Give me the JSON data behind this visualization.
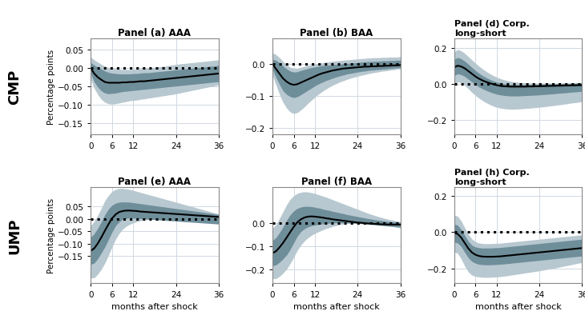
{
  "x": [
    0,
    1,
    2,
    3,
    4,
    5,
    6,
    7,
    8,
    9,
    10,
    11,
    12,
    13,
    14,
    15,
    16,
    17,
    18,
    19,
    20,
    21,
    22,
    23,
    24,
    25,
    26,
    27,
    28,
    29,
    30,
    31,
    32,
    33,
    34,
    35,
    36
  ],
  "panels": {
    "cmp_aaa": {
      "title": "Panel (a) AAA",
      "median": [
        0.0,
        -0.015,
        -0.025,
        -0.032,
        -0.038,
        -0.04,
        -0.04,
        -0.04,
        -0.04,
        -0.039,
        -0.039,
        -0.038,
        -0.038,
        -0.037,
        -0.036,
        -0.036,
        -0.035,
        -0.034,
        -0.033,
        -0.032,
        -0.031,
        -0.03,
        -0.029,
        -0.028,
        -0.027,
        -0.026,
        -0.025,
        -0.024,
        -0.023,
        -0.022,
        -0.021,
        -0.02,
        -0.019,
        -0.018,
        -0.017,
        -0.016,
        -0.015
      ],
      "band68_upper": [
        0.015,
        0.008,
        0.002,
        -0.003,
        -0.008,
        -0.012,
        -0.014,
        -0.015,
        -0.016,
        -0.016,
        -0.016,
        -0.016,
        -0.015,
        -0.015,
        -0.014,
        -0.013,
        -0.013,
        -0.012,
        -0.011,
        -0.01,
        -0.009,
        -0.008,
        -0.007,
        -0.006,
        -0.005,
        -0.004,
        -0.003,
        -0.002,
        -0.001,
        0.0,
        0.001,
        0.002,
        0.003,
        0.004,
        0.005,
        0.006,
        0.007
      ],
      "band68_lower": [
        -0.015,
        -0.038,
        -0.052,
        -0.062,
        -0.068,
        -0.07,
        -0.069,
        -0.068,
        -0.066,
        -0.064,
        -0.063,
        -0.062,
        -0.061,
        -0.06,
        -0.059,
        -0.058,
        -0.057,
        -0.056,
        -0.055,
        -0.054,
        -0.053,
        -0.052,
        -0.051,
        -0.05,
        -0.049,
        -0.048,
        -0.047,
        -0.046,
        -0.045,
        -0.044,
        -0.043,
        -0.042,
        -0.041,
        -0.04,
        -0.039,
        -0.038,
        -0.037
      ],
      "band90_upper": [
        0.03,
        0.022,
        0.016,
        0.01,
        0.005,
        0.001,
        -0.001,
        -0.002,
        -0.003,
        -0.004,
        -0.004,
        -0.004,
        -0.003,
        -0.003,
        -0.002,
        -0.001,
        0.0,
        0.001,
        0.002,
        0.003,
        0.004,
        0.005,
        0.007,
        0.008,
        0.01,
        0.011,
        0.012,
        0.013,
        0.014,
        0.015,
        0.016,
        0.017,
        0.018,
        0.019,
        0.02,
        0.021,
        0.022
      ],
      "band90_lower": [
        -0.03,
        -0.055,
        -0.072,
        -0.085,
        -0.093,
        -0.097,
        -0.098,
        -0.097,
        -0.095,
        -0.093,
        -0.091,
        -0.089,
        -0.088,
        -0.087,
        -0.085,
        -0.084,
        -0.082,
        -0.081,
        -0.079,
        -0.078,
        -0.076,
        -0.075,
        -0.073,
        -0.072,
        -0.07,
        -0.068,
        -0.066,
        -0.064,
        -0.062,
        -0.06,
        -0.058,
        -0.056,
        -0.054,
        -0.052,
        -0.05,
        -0.048,
        -0.046
      ],
      "ylim": [
        -0.18,
        0.08
      ],
      "yticks": [
        0.05,
        0,
        -0.05,
        -0.1,
        -0.15
      ]
    },
    "cmp_baa": {
      "title": "Panel (b) BAA",
      "median": [
        0.0,
        -0.015,
        -0.03,
        -0.045,
        -0.055,
        -0.062,
        -0.065,
        -0.063,
        -0.058,
        -0.053,
        -0.048,
        -0.043,
        -0.038,
        -0.033,
        -0.029,
        -0.026,
        -0.023,
        -0.02,
        -0.018,
        -0.016,
        -0.014,
        -0.013,
        -0.012,
        -0.011,
        -0.01,
        -0.009,
        -0.008,
        -0.008,
        -0.007,
        -0.007,
        -0.006,
        -0.006,
        -0.005,
        -0.005,
        -0.004,
        -0.004,
        -0.003
      ],
      "band68_upper": [
        0.015,
        0.012,
        0.004,
        -0.006,
        -0.015,
        -0.022,
        -0.025,
        -0.024,
        -0.02,
        -0.017,
        -0.014,
        -0.011,
        -0.009,
        -0.007,
        -0.005,
        -0.004,
        -0.003,
        -0.002,
        -0.001,
        0.0,
        0.001,
        0.002,
        0.003,
        0.004,
        0.005,
        0.006,
        0.007,
        0.008,
        0.008,
        0.009,
        0.009,
        0.01,
        0.01,
        0.011,
        0.011,
        0.012,
        0.012
      ],
      "band68_lower": [
        -0.015,
        -0.042,
        -0.064,
        -0.084,
        -0.095,
        -0.102,
        -0.105,
        -0.102,
        -0.096,
        -0.089,
        -0.082,
        -0.075,
        -0.068,
        -0.062,
        -0.057,
        -0.052,
        -0.048,
        -0.044,
        -0.04,
        -0.037,
        -0.034,
        -0.031,
        -0.029,
        -0.027,
        -0.025,
        -0.023,
        -0.022,
        -0.02,
        -0.019,
        -0.018,
        -0.017,
        -0.016,
        -0.015,
        -0.014,
        -0.013,
        -0.012,
        -0.012
      ],
      "band90_upper": [
        0.035,
        0.03,
        0.02,
        0.008,
        -0.002,
        -0.01,
        -0.013,
        -0.013,
        -0.01,
        -0.007,
        -0.004,
        -0.002,
        0.0,
        0.002,
        0.004,
        0.006,
        0.007,
        0.009,
        0.01,
        0.011,
        0.012,
        0.013,
        0.014,
        0.015,
        0.016,
        0.017,
        0.018,
        0.019,
        0.019,
        0.02,
        0.02,
        0.021,
        0.021,
        0.022,
        0.022,
        0.022,
        0.023
      ],
      "band90_lower": [
        -0.035,
        -0.065,
        -0.095,
        -0.12,
        -0.138,
        -0.15,
        -0.155,
        -0.152,
        -0.144,
        -0.134,
        -0.123,
        -0.113,
        -0.103,
        -0.094,
        -0.086,
        -0.079,
        -0.072,
        -0.066,
        -0.061,
        -0.056,
        -0.052,
        -0.048,
        -0.044,
        -0.041,
        -0.038,
        -0.035,
        -0.033,
        -0.03,
        -0.028,
        -0.026,
        -0.024,
        -0.022,
        -0.021,
        -0.019,
        -0.018,
        -0.016,
        -0.015
      ],
      "ylim": [
        -0.22,
        0.08
      ],
      "yticks": [
        0,
        -0.1,
        -0.2
      ]
    },
    "cmp_ls": {
      "title": "Panel (d) Corp.\nlong-short",
      "median": [
        0.09,
        0.1,
        0.095,
        0.085,
        0.07,
        0.055,
        0.04,
        0.028,
        0.018,
        0.01,
        0.003,
        -0.003,
        -0.008,
        -0.012,
        -0.014,
        -0.015,
        -0.016,
        -0.016,
        -0.016,
        -0.016,
        -0.016,
        -0.015,
        -0.015,
        -0.014,
        -0.014,
        -0.013,
        -0.013,
        -0.012,
        -0.012,
        -0.011,
        -0.011,
        -0.01,
        -0.01,
        -0.009,
        -0.009,
        -0.008,
        -0.008
      ],
      "band68_upper": [
        0.135,
        0.145,
        0.138,
        0.125,
        0.108,
        0.09,
        0.073,
        0.058,
        0.045,
        0.034,
        0.024,
        0.016,
        0.009,
        0.004,
        0.0,
        -0.002,
        -0.004,
        -0.005,
        -0.005,
        -0.005,
        -0.005,
        -0.005,
        -0.004,
        -0.004,
        -0.003,
        -0.003,
        -0.002,
        -0.001,
        -0.001,
        0.0,
        0.0,
        0.001,
        0.001,
        0.002,
        0.002,
        0.003,
        0.003
      ],
      "band68_lower": [
        0.045,
        0.055,
        0.05,
        0.04,
        0.025,
        0.01,
        -0.005,
        -0.018,
        -0.028,
        -0.037,
        -0.045,
        -0.052,
        -0.058,
        -0.062,
        -0.065,
        -0.067,
        -0.068,
        -0.068,
        -0.068,
        -0.067,
        -0.066,
        -0.065,
        -0.064,
        -0.063,
        -0.062,
        -0.06,
        -0.059,
        -0.057,
        -0.056,
        -0.054,
        -0.052,
        -0.051,
        -0.049,
        -0.047,
        -0.046,
        -0.044,
        -0.042
      ],
      "band90_upper": [
        0.175,
        0.19,
        0.182,
        0.168,
        0.15,
        0.132,
        0.114,
        0.097,
        0.082,
        0.068,
        0.056,
        0.045,
        0.036,
        0.028,
        0.022,
        0.017,
        0.013,
        0.01,
        0.008,
        0.006,
        0.005,
        0.004,
        0.004,
        0.003,
        0.003,
        0.003,
        0.003,
        0.003,
        0.003,
        0.003,
        0.004,
        0.004,
        0.004,
        0.005,
        0.005,
        0.006,
        0.006
      ],
      "band90_lower": [
        -0.005,
        0.01,
        0.005,
        -0.01,
        -0.028,
        -0.048,
        -0.065,
        -0.08,
        -0.093,
        -0.105,
        -0.115,
        -0.124,
        -0.13,
        -0.135,
        -0.138,
        -0.14,
        -0.141,
        -0.141,
        -0.14,
        -0.139,
        -0.137,
        -0.136,
        -0.134,
        -0.132,
        -0.13,
        -0.128,
        -0.126,
        -0.123,
        -0.121,
        -0.118,
        -0.116,
        -0.113,
        -0.11,
        -0.107,
        -0.105,
        -0.102,
        -0.099
      ],
      "ylim": [
        -0.28,
        0.25
      ],
      "yticks": [
        0.2,
        0,
        -0.2
      ]
    },
    "ump_aaa": {
      "title": "Panel (e) AAA",
      "median": [
        -0.13,
        -0.12,
        -0.1,
        -0.075,
        -0.048,
        -0.022,
        0.002,
        0.018,
        0.028,
        0.032,
        0.034,
        0.034,
        0.033,
        0.032,
        0.03,
        0.029,
        0.028,
        0.027,
        0.026,
        0.025,
        0.024,
        0.023,
        0.022,
        0.021,
        0.02,
        0.019,
        0.018,
        0.017,
        0.016,
        0.015,
        0.014,
        0.013,
        0.012,
        0.011,
        0.01,
        0.009,
        0.008
      ],
      "band68_upper": [
        -0.075,
        -0.06,
        -0.038,
        -0.012,
        0.018,
        0.04,
        0.056,
        0.064,
        0.068,
        0.069,
        0.069,
        0.068,
        0.066,
        0.064,
        0.062,
        0.06,
        0.058,
        0.056,
        0.054,
        0.052,
        0.05,
        0.048,
        0.046,
        0.044,
        0.042,
        0.04,
        0.038,
        0.036,
        0.034,
        0.032,
        0.03,
        0.028,
        0.026,
        0.024,
        0.022,
        0.02,
        0.018
      ],
      "band68_lower": [
        -0.185,
        -0.18,
        -0.162,
        -0.138,
        -0.114,
        -0.084,
        -0.054,
        -0.028,
        -0.012,
        -0.002,
        0.002,
        0.004,
        0.003,
        0.002,
        0.001,
        0.0,
        -0.001,
        -0.002,
        -0.003,
        -0.004,
        -0.005,
        -0.006,
        -0.007,
        -0.008,
        -0.009,
        -0.01,
        -0.011,
        -0.012,
        -0.013,
        -0.014,
        -0.015,
        -0.016,
        -0.017,
        -0.018,
        -0.019,
        -0.02,
        -0.021
      ],
      "band90_upper": [
        -0.028,
        -0.01,
        0.015,
        0.044,
        0.074,
        0.096,
        0.112,
        0.12,
        0.124,
        0.124,
        0.122,
        0.12,
        0.116,
        0.112,
        0.108,
        0.104,
        0.1,
        0.096,
        0.092,
        0.088,
        0.084,
        0.08,
        0.076,
        0.072,
        0.068,
        0.064,
        0.06,
        0.056,
        0.052,
        0.048,
        0.044,
        0.04,
        0.036,
        0.032,
        0.028,
        0.024,
        0.02
      ],
      "band90_lower": [
        -0.24,
        -0.24,
        -0.225,
        -0.205,
        -0.18,
        -0.148,
        -0.115,
        -0.083,
        -0.059,
        -0.042,
        -0.03,
        -0.022,
        -0.016,
        -0.011,
        -0.008,
        -0.005,
        -0.003,
        -0.001,
        0.001,
        0.002,
        0.003,
        0.003,
        0.003,
        0.003,
        0.002,
        0.001,
        0.0,
        -0.001,
        -0.003,
        -0.004,
        -0.006,
        -0.007,
        -0.009,
        -0.01,
        -0.012,
        -0.013,
        -0.015
      ],
      "ylim": [
        -0.26,
        0.13
      ],
      "yticks": [
        0.05,
        0,
        -0.05,
        -0.1,
        -0.15
      ]
    },
    "ump_baa": {
      "title": "Panel (f) BAA",
      "median": [
        -0.13,
        -0.122,
        -0.105,
        -0.085,
        -0.062,
        -0.038,
        -0.015,
        0.005,
        0.018,
        0.026,
        0.03,
        0.031,
        0.03,
        0.028,
        0.026,
        0.023,
        0.021,
        0.018,
        0.016,
        0.014,
        0.012,
        0.01,
        0.008,
        0.006,
        0.004,
        0.003,
        0.001,
        0.0,
        -0.001,
        -0.002,
        -0.003,
        -0.004,
        -0.004,
        -0.005,
        -0.005,
        -0.005,
        -0.005
      ],
      "band68_upper": [
        -0.075,
        -0.062,
        -0.04,
        -0.015,
        0.014,
        0.038,
        0.055,
        0.066,
        0.072,
        0.075,
        0.075,
        0.074,
        0.071,
        0.068,
        0.064,
        0.06,
        0.057,
        0.053,
        0.05,
        0.046,
        0.043,
        0.039,
        0.036,
        0.033,
        0.03,
        0.027,
        0.024,
        0.021,
        0.019,
        0.016,
        0.014,
        0.012,
        0.01,
        0.008,
        0.007,
        0.005,
        0.004
      ],
      "band68_lower": [
        -0.185,
        -0.182,
        -0.17,
        -0.155,
        -0.138,
        -0.114,
        -0.085,
        -0.056,
        -0.036,
        -0.023,
        -0.015,
        -0.01,
        -0.007,
        -0.004,
        -0.002,
        0.0,
        0.001,
        0.002,
        0.003,
        0.003,
        0.003,
        0.003,
        0.002,
        0.001,
        0.0,
        -0.001,
        -0.002,
        -0.003,
        -0.005,
        -0.006,
        -0.008,
        -0.009,
        -0.011,
        -0.012,
        -0.013,
        -0.015,
        -0.016
      ],
      "band90_upper": [
        -0.022,
        -0.005,
        0.022,
        0.052,
        0.082,
        0.106,
        0.122,
        0.132,
        0.137,
        0.139,
        0.138,
        0.135,
        0.131,
        0.126,
        0.121,
        0.116,
        0.11,
        0.104,
        0.098,
        0.092,
        0.086,
        0.08,
        0.074,
        0.068,
        0.062,
        0.056,
        0.05,
        0.044,
        0.039,
        0.034,
        0.029,
        0.025,
        0.021,
        0.017,
        0.014,
        0.011,
        0.008
      ],
      "band90_lower": [
        -0.242,
        -0.242,
        -0.232,
        -0.218,
        -0.2,
        -0.176,
        -0.148,
        -0.118,
        -0.095,
        -0.077,
        -0.063,
        -0.052,
        -0.043,
        -0.036,
        -0.029,
        -0.023,
        -0.018,
        -0.013,
        -0.009,
        -0.005,
        -0.002,
        0.0,
        0.002,
        0.003,
        0.004,
        0.004,
        0.003,
        0.002,
        0.001,
        -0.001,
        -0.003,
        -0.005,
        -0.008,
        -0.011,
        -0.014,
        -0.017,
        -0.02
      ],
      "ylim": [
        -0.26,
        0.16
      ],
      "yticks": [
        0,
        -0.1,
        -0.2
      ]
    },
    "ump_ls": {
      "title": "Panel (h) Corp.\nlong-short",
      "median": [
        -0.005,
        -0.01,
        -0.03,
        -0.06,
        -0.09,
        -0.112,
        -0.125,
        -0.132,
        -0.135,
        -0.136,
        -0.136,
        -0.136,
        -0.135,
        -0.134,
        -0.132,
        -0.13,
        -0.128,
        -0.126,
        -0.124,
        -0.122,
        -0.12,
        -0.118,
        -0.116,
        -0.114,
        -0.112,
        -0.11,
        -0.108,
        -0.106,
        -0.104,
        -0.102,
        -0.1,
        -0.098,
        -0.096,
        -0.094,
        -0.092,
        -0.09,
        -0.088
      ],
      "band68_upper": [
        0.045,
        0.038,
        0.015,
        -0.018,
        -0.05,
        -0.072,
        -0.082,
        -0.086,
        -0.088,
        -0.088,
        -0.088,
        -0.087,
        -0.086,
        -0.085,
        -0.083,
        -0.081,
        -0.079,
        -0.077,
        -0.075,
        -0.073,
        -0.071,
        -0.069,
        -0.067,
        -0.065,
        -0.063,
        -0.061,
        -0.059,
        -0.057,
        -0.055,
        -0.053,
        -0.051,
        -0.049,
        -0.047,
        -0.045,
        -0.043,
        -0.041,
        -0.039
      ],
      "band68_lower": [
        -0.055,
        -0.06,
        -0.08,
        -0.112,
        -0.142,
        -0.162,
        -0.172,
        -0.178,
        -0.18,
        -0.181,
        -0.181,
        -0.18,
        -0.179,
        -0.178,
        -0.176,
        -0.174,
        -0.172,
        -0.17,
        -0.168,
        -0.166,
        -0.164,
        -0.162,
        -0.16,
        -0.158,
        -0.156,
        -0.154,
        -0.152,
        -0.15,
        -0.148,
        -0.146,
        -0.144,
        -0.142,
        -0.14,
        -0.138,
        -0.136,
        -0.134,
        -0.132
      ],
      "band90_upper": [
        0.095,
        0.088,
        0.062,
        0.024,
        -0.012,
        -0.038,
        -0.053,
        -0.06,
        -0.063,
        -0.064,
        -0.064,
        -0.063,
        -0.062,
        -0.061,
        -0.059,
        -0.057,
        -0.055,
        -0.053,
        -0.051,
        -0.049,
        -0.047,
        -0.045,
        -0.043,
        -0.041,
        -0.039,
        -0.037,
        -0.035,
        -0.033,
        -0.031,
        -0.029,
        -0.027,
        -0.025,
        -0.023,
        -0.021,
        -0.019,
        -0.017,
        -0.015
      ],
      "band90_lower": [
        -0.11,
        -0.118,
        -0.148,
        -0.188,
        -0.22,
        -0.238,
        -0.245,
        -0.248,
        -0.25,
        -0.25,
        -0.25,
        -0.249,
        -0.248,
        -0.246,
        -0.244,
        -0.241,
        -0.238,
        -0.235,
        -0.232,
        -0.229,
        -0.226,
        -0.223,
        -0.22,
        -0.217,
        -0.214,
        -0.21,
        -0.207,
        -0.203,
        -0.2,
        -0.196,
        -0.192,
        -0.188,
        -0.184,
        -0.18,
        -0.176,
        -0.172,
        -0.168
      ],
      "ylim": [
        -0.28,
        0.25
      ],
      "yticks": [
        0.2,
        0,
        -0.2
      ]
    }
  },
  "color_band90": "#b8c8d0",
  "color_band68": "#6e8e9a",
  "color_median": "#000000",
  "color_zero": "#000000",
  "row_labels": [
    "CMP",
    "UMP"
  ],
  "xticks": [
    0,
    6,
    12,
    24,
    36
  ],
  "xlabel": "months after shock",
  "ylabel": "Percentage points",
  "plot_bg": "#ffffff",
  "fig_bg": "#ffffff",
  "grid_color": "#d0d8e0",
  "spine_color": "#888888"
}
